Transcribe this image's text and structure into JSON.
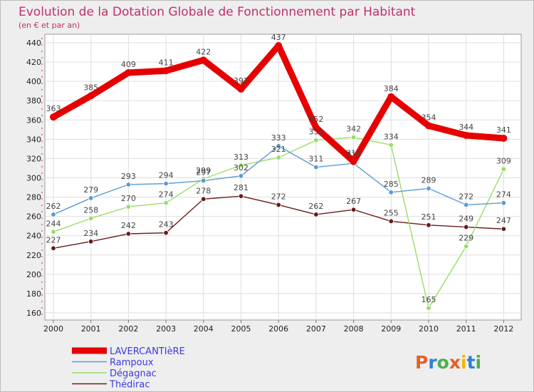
{
  "chart_data": {
    "type": "line",
    "title": "Evolution de la Dotation Globale de Fonctionnement par Habitant",
    "subtitle": "(en € et par an)",
    "x": [
      "2000",
      "2001",
      "2002",
      "2003",
      "2004",
      "2005",
      "2006",
      "2007",
      "2008",
      "2009",
      "2010",
      "2011",
      "2012"
    ],
    "ylim": [
      160,
      440
    ],
    "yticks": [
      160,
      180,
      200,
      220,
      240,
      260,
      280,
      300,
      320,
      340,
      360,
      380,
      400,
      420,
      440
    ],
    "grid": true,
    "legend_placement": "bottom-left",
    "series": [
      {
        "name": "LAVERCANTIèRE",
        "color": "#e60000",
        "values": [
          363,
          385,
          409,
          411,
          422,
          392,
          437,
          352,
          317,
          384,
          354,
          344,
          341
        ]
      },
      {
        "name": "Rampoux",
        "color": "#5b9bd5",
        "values": [
          262,
          279,
          293,
          294,
          297,
          302,
          333,
          311,
          315,
          285,
          289,
          272,
          274
        ]
      },
      {
        "name": "Dégagnac",
        "color": "#99dd66",
        "values": [
          244,
          258,
          270,
          274,
          299,
          313,
          321,
          339,
          342,
          334,
          165,
          229,
          309
        ]
      },
      {
        "name": "Thédirac",
        "color": "#6b1a1a",
        "values": [
          227,
          234,
          242,
          243,
          278,
          281,
          272,
          262,
          267,
          255,
          251,
          249,
          247
        ]
      }
    ]
  },
  "logo": {
    "text": "Proxiti"
  }
}
